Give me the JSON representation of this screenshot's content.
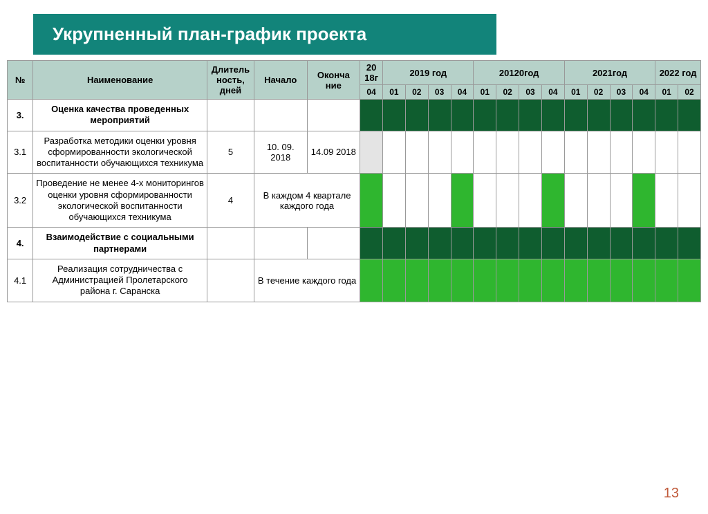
{
  "title": "Укрупненный план-график проекта",
  "page_number": "13",
  "colors": {
    "title_bg": "#12847a",
    "header_bg": "#b6d1c9",
    "dark": "#0f5d2f",
    "green": "#2fb62f",
    "grey": "#e4e4e4",
    "border": "#999999"
  },
  "headers": {
    "num": "№",
    "name": "Наименование",
    "duration": "Длитель ность, дней",
    "start": "Начало",
    "end": "Оконча ние",
    "y2018": "20 18г",
    "y2019": "2019 год",
    "y2020": "20120год",
    "y2021": "2021год",
    "y2022": "2022 год"
  },
  "quarters": [
    "04",
    "01",
    "02",
    "03",
    "04",
    "01",
    "02",
    "03",
    "04",
    "01",
    "02",
    "03",
    "04",
    "01",
    "02"
  ],
  "rows": [
    {
      "num": "3.",
      "name": "Оценка качества проведенных мероприятий",
      "bold": true,
      "duration": "",
      "start": "",
      "end": "",
      "merge_start_end": false,
      "cells": [
        "dark",
        "dark",
        "dark",
        "dark",
        "dark",
        "dark",
        "dark",
        "dark",
        "dark",
        "dark",
        "dark",
        "dark",
        "dark",
        "dark",
        "dark"
      ]
    },
    {
      "num": "3.1",
      "name": "Разработка методики оценки уровня сформированности экологической воспитанности обучающихся техникума",
      "bold": false,
      "duration": "5",
      "start": "10. 09. 2018",
      "end": "14.09 2018",
      "merge_start_end": false,
      "cells": [
        "grey",
        "white",
        "white",
        "white",
        "white",
        "white",
        "white",
        "white",
        "white",
        "white",
        "white",
        "white",
        "white",
        "white",
        "white"
      ]
    },
    {
      "num": "3.2",
      "name": "Проведение не менее 4-х мониторингов оценки уровня сформированности экологической воспитанности обучающихся техникума",
      "bold": false,
      "duration": "4",
      "merged_text": "В каждом 4 квартале каждого года",
      "merge_start_end": true,
      "cells": [
        "green",
        "white",
        "white",
        "white",
        "green",
        "white",
        "white",
        "white",
        "green",
        "white",
        "white",
        "white",
        "green",
        "white",
        "white"
      ]
    },
    {
      "num": "4.",
      "name": "Взаимодействие с социальными партнерами",
      "bold": true,
      "duration": "",
      "start": "",
      "end": "",
      "merge_start_end": false,
      "cells": [
        "dark",
        "dark",
        "dark",
        "dark",
        "dark",
        "dark",
        "dark",
        "dark",
        "dark",
        "dark",
        "dark",
        "dark",
        "dark",
        "dark",
        "dark"
      ]
    },
    {
      "num": "4.1",
      "name": "Реализация сотрудничества с Администрацией Пролетарского района г. Саранска",
      "bold": false,
      "duration": "",
      "merged_text": "В течение  каждого года",
      "merge_start_end": true,
      "cells": [
        "green",
        "green",
        "green",
        "green",
        "green",
        "green",
        "green",
        "green",
        "green",
        "green",
        "green",
        "green",
        "green",
        "green",
        "green"
      ]
    }
  ]
}
